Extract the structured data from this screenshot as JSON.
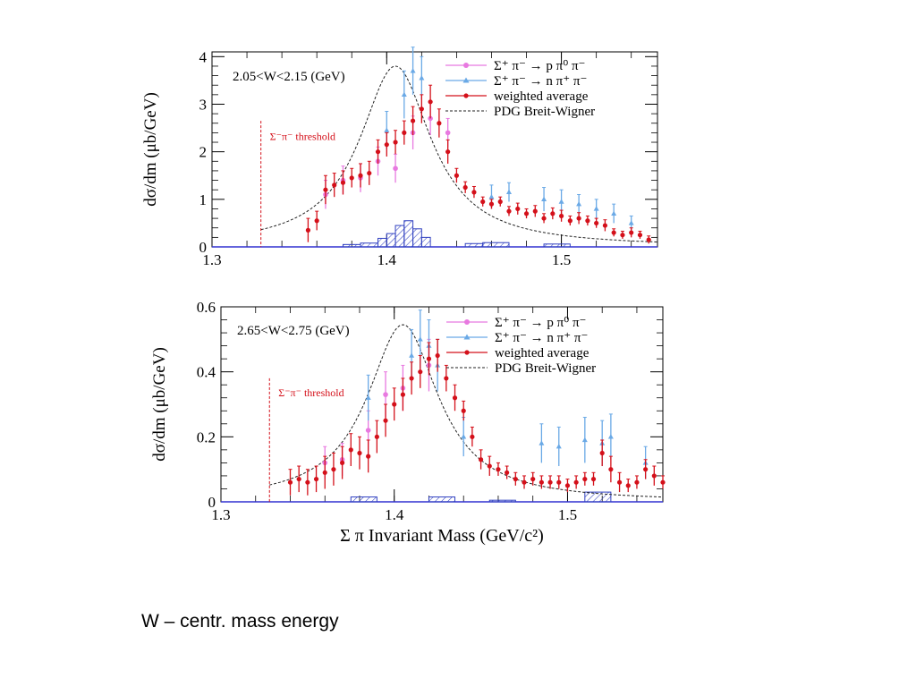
{
  "colors": {
    "pink": "#e879e0",
    "blue": "#6aa9e6",
    "red": "#d4101a",
    "axisBlue": "#3030d0",
    "hatch": "#3040c0"
  },
  "caption": "W – centr. mass energy",
  "chart_data": [
    {
      "type": "scatter",
      "panel": "top",
      "title": "2.05<W<2.15 (GeV)",
      "xlabel": "Σ π Invariant Mass (GeV/c²)",
      "ylabel": "dσ/dm (μb/GeV)",
      "xlim": [
        1.3,
        1.555
      ],
      "ylim": [
        0,
        4.1
      ],
      "xticks": [
        1.3,
        1.4,
        1.5
      ],
      "yticks": [
        0,
        1,
        2,
        3,
        4
      ],
      "xtick_labels": [
        "1.3",
        "1.4",
        "1.5"
      ],
      "ytick_labels": [
        "0",
        "1",
        "2",
        "3",
        "4"
      ],
      "threshold": {
        "x": 1.328,
        "label": "Σ⁻π⁻ threshold",
        "y_top": 2.65,
        "label_y": 2.25
      },
      "legend": [
        "Σ⁺ π⁻ → p π⁰ π⁻",
        "Σ⁺ π⁻ → n π⁺ π⁻",
        "weighted average",
        "PDG Breit-Wigner"
      ],
      "bw": {
        "m0": 1.405,
        "gamma": 0.05,
        "peak": 3.8
      },
      "series": [
        {
          "name": "weighted average",
          "x": [
            1.355,
            1.36,
            1.365,
            1.37,
            1.375,
            1.38,
            1.385,
            1.39,
            1.395,
            1.4,
            1.405,
            1.41,
            1.415,
            1.42,
            1.425,
            1.43,
            1.435,
            1.44,
            1.445,
            1.45,
            1.455,
            1.46,
            1.465,
            1.47,
            1.475,
            1.48,
            1.485,
            1.49,
            1.495,
            1.5,
            1.505,
            1.51,
            1.515,
            1.52,
            1.525,
            1.53,
            1.535,
            1.54,
            1.545,
            1.55
          ],
          "y": [
            0.35,
            0.55,
            1.2,
            1.3,
            1.35,
            1.45,
            1.5,
            1.55,
            2.0,
            2.15,
            2.2,
            2.4,
            2.65,
            2.9,
            3.05,
            2.6,
            2.0,
            1.5,
            1.25,
            1.15,
            0.95,
            0.9,
            0.95,
            0.75,
            0.8,
            0.7,
            0.75,
            0.6,
            0.7,
            0.65,
            0.55,
            0.6,
            0.55,
            0.5,
            0.45,
            0.3,
            0.25,
            0.3,
            0.25,
            0.15
          ],
          "err": [
            0.25,
            0.2,
            0.3,
            0.25,
            0.25,
            0.2,
            0.25,
            0.25,
            0.25,
            0.25,
            0.25,
            0.25,
            0.3,
            0.3,
            0.35,
            0.3,
            0.25,
            0.15,
            0.12,
            0.12,
            0.1,
            0.1,
            0.1,
            0.1,
            0.12,
            0.1,
            0.12,
            0.1,
            0.12,
            0.12,
            0.1,
            0.12,
            0.1,
            0.1,
            0.12,
            0.08,
            0.08,
            0.1,
            0.08,
            0.08
          ]
        },
        {
          "name": "Σ⁺ π⁻ → p π⁰ π⁻",
          "x": [
            1.365,
            1.375,
            1.385,
            1.395,
            1.405,
            1.415,
            1.425,
            1.435
          ],
          "y": [
            1.1,
            1.4,
            1.45,
            1.8,
            1.65,
            2.4,
            2.7,
            2.4
          ],
          "err": [
            0.3,
            0.3,
            0.3,
            0.3,
            0.3,
            0.35,
            0.35,
            0.3
          ]
        },
        {
          "name": "Σ⁺ π⁻ → n π⁺ π⁻",
          "x": [
            1.4,
            1.41,
            1.415,
            1.42,
            1.46,
            1.47,
            1.49,
            1.5,
            1.51,
            1.52,
            1.53,
            1.54
          ],
          "y": [
            2.45,
            3.2,
            3.7,
            3.55,
            1.05,
            1.15,
            1.0,
            0.95,
            0.9,
            0.8,
            0.7,
            0.5
          ],
          "err": [
            0.4,
            0.5,
            0.5,
            0.45,
            0.25,
            0.2,
            0.25,
            0.25,
            0.2,
            0.2,
            0.2,
            0.15
          ]
        }
      ],
      "hist": [
        {
          "x0": 1.375,
          "x1": 1.385,
          "h": 0.05
        },
        {
          "x0": 1.385,
          "x1": 1.395,
          "h": 0.08
        },
        {
          "x0": 1.395,
          "x1": 1.4,
          "h": 0.18
        },
        {
          "x0": 1.4,
          "x1": 1.405,
          "h": 0.28
        },
        {
          "x0": 1.405,
          "x1": 1.41,
          "h": 0.45
        },
        {
          "x0": 1.41,
          "x1": 1.415,
          "h": 0.55
        },
        {
          "x0": 1.415,
          "x1": 1.42,
          "h": 0.38
        },
        {
          "x0": 1.42,
          "x1": 1.425,
          "h": 0.2
        },
        {
          "x0": 1.445,
          "x1": 1.455,
          "h": 0.07
        },
        {
          "x0": 1.455,
          "x1": 1.47,
          "h": 0.09
        },
        {
          "x0": 1.49,
          "x1": 1.505,
          "h": 0.06
        }
      ]
    },
    {
      "type": "scatter",
      "panel": "bottom",
      "title": "2.65<W<2.75 (GeV)",
      "xlabel": "Σ π Invariant Mass (GeV/c²)",
      "ylabel": "dσ/dm (μb/GeV)",
      "xlim": [
        1.3,
        1.555
      ],
      "ylim": [
        0,
        0.6
      ],
      "xticks": [
        1.3,
        1.4,
        1.5
      ],
      "yticks": [
        0,
        0.2,
        0.4,
        0.6
      ],
      "xtick_labels": [
        "1.3",
        "1.4",
        "1.5"
      ],
      "ytick_labels": [
        "0",
        "0.2",
        "0.4",
        "0.6"
      ],
      "threshold": {
        "x": 1.328,
        "label": "Σ⁻π⁻ threshold",
        "y_top": 0.38,
        "label_y": 0.325
      },
      "legend": [
        "Σ⁺ π⁻ → p π⁰ π⁻",
        "Σ⁺ π⁻ → n π⁺ π⁻",
        "weighted average",
        "PDG Breit-Wigner"
      ],
      "bw": {
        "m0": 1.405,
        "gamma": 0.05,
        "peak": 0.545
      },
      "series": [
        {
          "name": "weighted average",
          "x": [
            1.34,
            1.345,
            1.35,
            1.355,
            1.36,
            1.365,
            1.37,
            1.375,
            1.38,
            1.385,
            1.39,
            1.395,
            1.4,
            1.405,
            1.41,
            1.415,
            1.42,
            1.425,
            1.43,
            1.435,
            1.44,
            1.445,
            1.45,
            1.455,
            1.46,
            1.465,
            1.47,
            1.475,
            1.48,
            1.485,
            1.49,
            1.495,
            1.5,
            1.505,
            1.51,
            1.515,
            1.52,
            1.525,
            1.53,
            1.535,
            1.54,
            1.545,
            1.55,
            1.555
          ],
          "y": [
            0.06,
            0.07,
            0.06,
            0.07,
            0.09,
            0.1,
            0.12,
            0.16,
            0.15,
            0.14,
            0.2,
            0.25,
            0.3,
            0.33,
            0.38,
            0.4,
            0.44,
            0.45,
            0.38,
            0.32,
            0.28,
            0.2,
            0.13,
            0.11,
            0.1,
            0.09,
            0.07,
            0.06,
            0.07,
            0.06,
            0.06,
            0.06,
            0.05,
            0.06,
            0.07,
            0.07,
            0.15,
            0.1,
            0.06,
            0.05,
            0.06,
            0.1,
            0.08,
            0.06
          ],
          "err": [
            0.04,
            0.04,
            0.04,
            0.04,
            0.05,
            0.05,
            0.05,
            0.05,
            0.05,
            0.05,
            0.05,
            0.05,
            0.05,
            0.05,
            0.05,
            0.05,
            0.05,
            0.05,
            0.04,
            0.04,
            0.03,
            0.03,
            0.03,
            0.03,
            0.02,
            0.02,
            0.02,
            0.02,
            0.02,
            0.02,
            0.02,
            0.02,
            0.02,
            0.02,
            0.02,
            0.02,
            0.04,
            0.04,
            0.03,
            0.02,
            0.02,
            0.03,
            0.03,
            0.02
          ]
        },
        {
          "name": "Σ⁺ π⁻ → p π⁰ π⁻",
          "x": [
            1.36,
            1.37,
            1.385,
            1.395,
            1.405,
            1.42
          ],
          "y": [
            0.12,
            0.13,
            0.22,
            0.33,
            0.35,
            0.42
          ],
          "err": [
            0.05,
            0.05,
            0.06,
            0.07,
            0.07,
            0.08
          ]
        },
        {
          "name": "Σ⁺ π⁻ → n π⁺ π⁻",
          "x": [
            1.385,
            1.41,
            1.415,
            1.42,
            1.425,
            1.44,
            1.485,
            1.495,
            1.51,
            1.52,
            1.525,
            1.545
          ],
          "y": [
            0.32,
            0.45,
            0.5,
            0.48,
            0.42,
            0.2,
            0.18,
            0.17,
            0.19,
            0.18,
            0.2,
            0.12
          ],
          "err": [
            0.07,
            0.08,
            0.09,
            0.08,
            0.08,
            0.06,
            0.06,
            0.06,
            0.07,
            0.07,
            0.07,
            0.05
          ]
        }
      ],
      "hist": [
        {
          "x0": 1.375,
          "x1": 1.39,
          "h": 0.015
        },
        {
          "x0": 1.42,
          "x1": 1.435,
          "h": 0.015
        },
        {
          "x0": 1.455,
          "x1": 1.47,
          "h": 0.005
        },
        {
          "x0": 1.51,
          "x1": 1.525,
          "h": 0.03
        }
      ]
    }
  ]
}
